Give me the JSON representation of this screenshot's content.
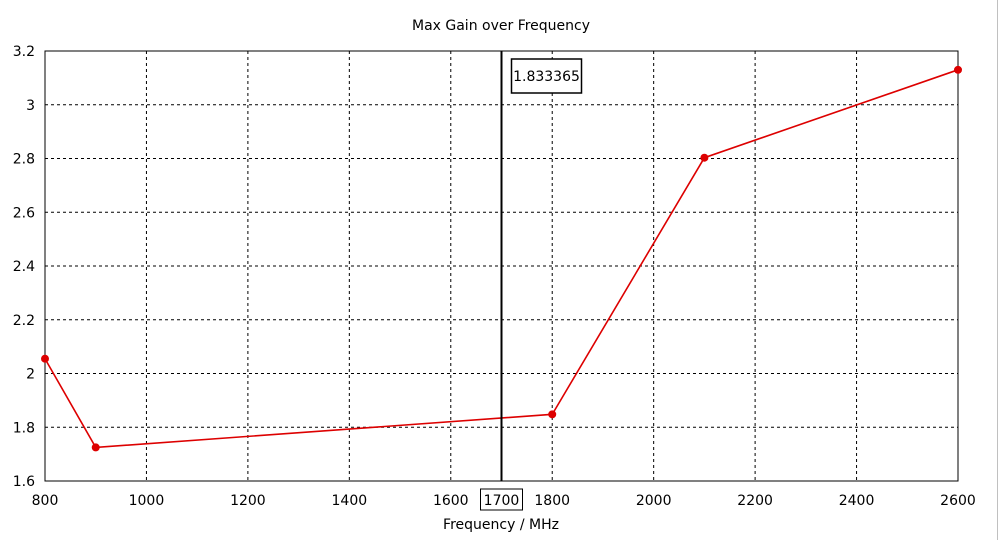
{
  "chart_data": {
    "type": "line",
    "title": "Max Gain over Frequency",
    "xlabel": "Frequency / MHz",
    "ylabel": "",
    "xlim": [
      800,
      2600
    ],
    "ylim": [
      1.6,
      3.2
    ],
    "x_ticks": [
      "800",
      "1000",
      "1200",
      "1400",
      "1600",
      "1800",
      "2000",
      "2200",
      "2400",
      "2600"
    ],
    "y_ticks": [
      "1.6",
      "1.8",
      "2",
      "2.2",
      "2.4",
      "2.6",
      "2.8",
      "3",
      "3.2"
    ],
    "grid": true,
    "series": [
      {
        "x": [
          800,
          900,
          1800,
          2100,
          2600
        ],
        "y": [
          2.055,
          1.725,
          1.848,
          2.803,
          3.13
        ],
        "color": "#dd0000"
      }
    ],
    "marker": {
      "x": 1700,
      "x_label": "1700",
      "value_label": "1.833365",
      "value_color": "#dd0000"
    }
  }
}
